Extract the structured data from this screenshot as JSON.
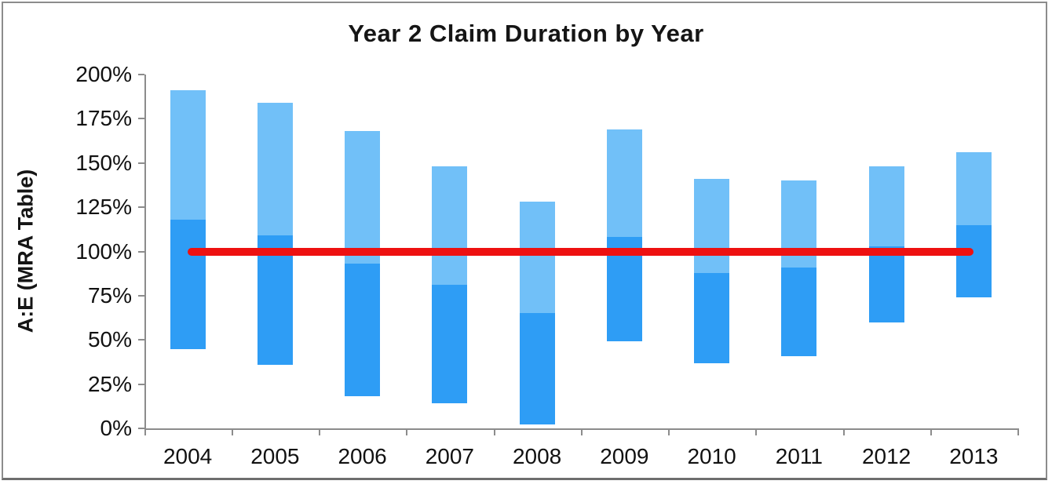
{
  "window": {
    "background": "#ffffff",
    "frame_border_color": "#8c8c8c"
  },
  "chart_data": {
    "type": "bar",
    "subtype": "floating-range-bars-two-tone",
    "title": "Year 2 Claim Duration by Year",
    "xlabel": "",
    "ylabel": "A:E (MRA Table)",
    "categories": [
      "2004",
      "2005",
      "2006",
      "2007",
      "2008",
      "2009",
      "2010",
      "2011",
      "2012",
      "2013"
    ],
    "series": [
      {
        "name": "lower_segment_dark_blue",
        "color": "#2E9DF5",
        "range_from": [
          45,
          36,
          18,
          14,
          2,
          49,
          37,
          41,
          60,
          74
        ],
        "range_to": [
          118,
          109,
          93,
          81,
          65,
          108,
          88,
          91,
          103,
          115
        ]
      },
      {
        "name": "upper_segment_light_blue",
        "color": "#71C0F8",
        "range_from": [
          118,
          109,
          93,
          81,
          65,
          108,
          88,
          91,
          103,
          115
        ],
        "range_to": [
          191,
          184,
          168,
          148,
          128,
          169,
          141,
          140,
          148,
          156
        ]
      }
    ],
    "reference_line": {
      "value": 100,
      "color": "#EE1111"
    },
    "ylim": [
      0,
      200
    ],
    "ytick_step": 25,
    "ytick_labels": [
      "0%",
      "25%",
      "50%",
      "75%",
      "100%",
      "125%",
      "150%",
      "175%",
      "200%"
    ],
    "axis_color": "#8c8c8c",
    "text_color": "#111111",
    "grid": false,
    "legend": false
  }
}
